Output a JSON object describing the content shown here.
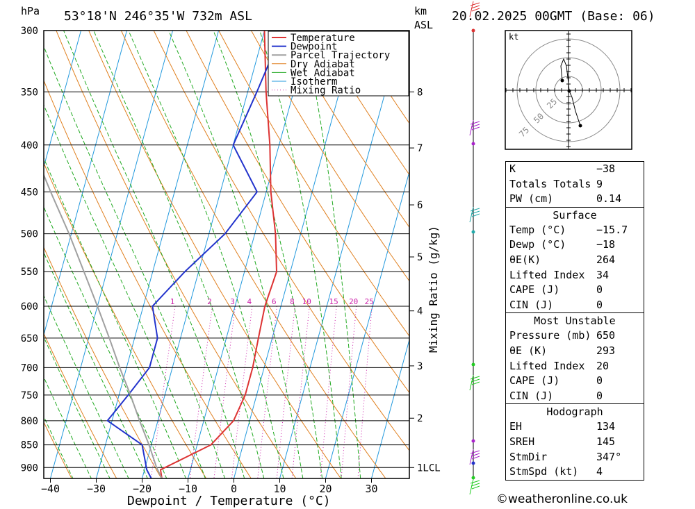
{
  "header": {
    "location": "53°18'N 246°35'W 732m ASL",
    "datetime": "20.02.2025 00GMT (Base: 06)",
    "left_unit": "hPa",
    "right_unit_km": "km",
    "right_unit_asl": "ASL"
  },
  "chart_data": {
    "type": "line",
    "title": "53°18'N 246°35'W 732m ASL",
    "xlabel": "Dewpoint / Temperature (°C)",
    "ylabel": "hPa",
    "y2label": "Mixing Ratio (g/kg)",
    "xlim": [
      -40,
      38
    ],
    "ylim": [
      925,
      300
    ],
    "x_ticks": [
      -40,
      -30,
      -20,
      -10,
      0,
      10,
      20,
      30
    ],
    "pressure_levels": [
      300,
      350,
      400,
      450,
      500,
      550,
      600,
      650,
      700,
      750,
      800,
      850,
      900
    ],
    "km_ticks": [
      {
        "km": "8",
        "p": 350
      },
      {
        "km": "7",
        "p": 403
      },
      {
        "km": "6",
        "p": 465
      },
      {
        "km": "5",
        "p": 530
      },
      {
        "km": "4",
        "p": 607
      },
      {
        "km": "3",
        "p": 697
      },
      {
        "km": "2",
        "p": 795
      },
      {
        "km": "1LCL",
        "p": 900
      }
    ],
    "mixing_ratio_labels": [
      "1",
      "2",
      "3",
      "4",
      "6",
      "8",
      "10",
      "15",
      "20",
      "25"
    ],
    "legend": [
      "Temperature",
      "Dewpoint",
      "Parcel Trajectory",
      "Dry Adiabat",
      "Wet Adiabat",
      "Isotherm",
      "Mixing Ratio"
    ],
    "colors": {
      "temperature": "#dd3333",
      "dewpoint": "#2233cc",
      "parcel": "#a0a0a0",
      "dry_adiabat": "#e08020",
      "wet_adiabat": "#22aa22",
      "isotherm": "#2299dd",
      "mixing_ratio": "#cc22aa"
    },
    "series": [
      {
        "name": "Temperature",
        "points": [
          [
            -15.7,
            925
          ],
          [
            -16.5,
            905
          ],
          [
            -7,
            850
          ],
          [
            -3.5,
            800
          ],
          [
            -2.5,
            750
          ],
          [
            -2.5,
            700
          ],
          [
            -3,
            650
          ],
          [
            -3.5,
            600
          ],
          [
            -3,
            550
          ],
          [
            -5.5,
            500
          ],
          [
            -9,
            450
          ],
          [
            -12,
            400
          ],
          [
            -16,
            350
          ],
          [
            -20,
            300
          ]
        ]
      },
      {
        "name": "Dewpoint",
        "points": [
          [
            -18,
            925
          ],
          [
            -19.5,
            905
          ],
          [
            -22,
            850
          ],
          [
            -31,
            800
          ],
          [
            -28,
            750
          ],
          [
            -25,
            700
          ],
          [
            -25,
            650
          ],
          [
            -28,
            600
          ],
          [
            -23,
            550
          ],
          [
            -16.5,
            500
          ],
          [
            -12,
            450
          ],
          [
            -20,
            400
          ],
          [
            -18,
            350
          ],
          [
            -16,
            300
          ]
        ]
      },
      {
        "name": "Parcel Trajectory",
        "points": [
          [
            -15.7,
            925
          ],
          [
            -17.5,
            900
          ],
          [
            -20.5,
            850
          ],
          [
            -24,
            800
          ],
          [
            -27.5,
            750
          ],
          [
            -31.5,
            700
          ],
          [
            -35.5,
            650
          ],
          [
            -40,
            600
          ],
          [
            -45,
            550
          ],
          [
            -50.5,
            500
          ],
          [
            -57,
            450
          ],
          [
            -64,
            400
          ]
        ]
      }
    ]
  },
  "hodograph": {
    "unit": "kt",
    "rings": [
      "25",
      "50",
      "75"
    ]
  },
  "indices": {
    "top": [
      {
        "label": "K",
        "value": "-38"
      },
      {
        "label": "Totals Totals",
        "value": "9"
      },
      {
        "label": "PW (cm)",
        "value": "0.14"
      }
    ],
    "surface": {
      "title": "Surface",
      "rows": [
        {
          "label": "Temp (°C)",
          "value": "-15.7"
        },
        {
          "label": "Dewp (°C)",
          "value": "-18"
        },
        {
          "label": "θE(K)",
          "value": "264"
        },
        {
          "label": "Lifted Index",
          "value": "34"
        },
        {
          "label": "CAPE (J)",
          "value": "0"
        },
        {
          "label": "CIN (J)",
          "value": "0"
        }
      ]
    },
    "most_unstable": {
      "title": "Most Unstable",
      "rows": [
        {
          "label": "Pressure (mb)",
          "value": "650"
        },
        {
          "label": "θE (K)",
          "value": "293"
        },
        {
          "label": "Lifted Index",
          "value": "20"
        },
        {
          "label": "CAPE (J)",
          "value": "0"
        },
        {
          "label": "CIN (J)",
          "value": "0"
        }
      ]
    },
    "hodograph": {
      "title": "Hodograph",
      "rows": [
        {
          "label": "EH",
          "value": "134"
        },
        {
          "label": "SREH",
          "value": "145"
        },
        {
          "label": "StmDir",
          "value": "347°"
        },
        {
          "label": "StmSpd (kt)",
          "value": "4"
        }
      ]
    }
  },
  "credit": "©weatheronline.co.uk"
}
